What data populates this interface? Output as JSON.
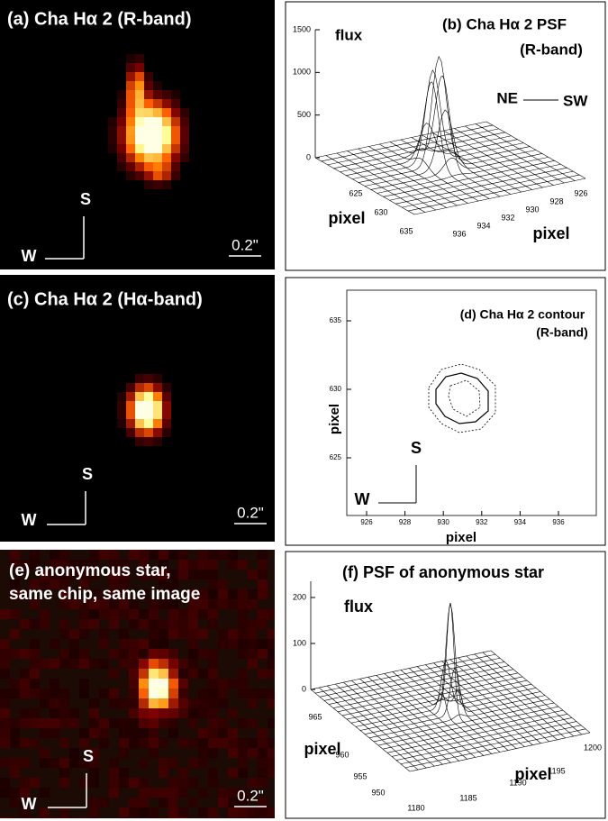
{
  "panels": [
    {
      "title": "(a) Cha Hα 2  (R-band)",
      "compass": {
        "up": "S",
        "left": "W"
      },
      "scale": "0.2\""
    },
    {
      "title": "(b) Cha Hα 2 PSF",
      "subtitle": "(R-band)",
      "z_label": "flux",
      "direction": {
        "left": "NE",
        "right": "SW"
      },
      "z_ticks": [
        0,
        500,
        1000,
        1500
      ],
      "y_ticks": [
        625,
        630,
        635
      ],
      "x_ticks": [
        926,
        928,
        930,
        932,
        934,
        936
      ],
      "y_label": "pixel",
      "x_label": "pixel"
    },
    {
      "title": "(c) Cha Hα 2 (Hα-band)",
      "compass": {
        "up": "S",
        "left": "W"
      },
      "scale": "0.2\""
    },
    {
      "title": "(d) Cha Hα 2 contour",
      "subtitle": "(R-band)",
      "y_ticks": [
        625,
        630,
        635
      ],
      "x_ticks": [
        926,
        928,
        930,
        932,
        934,
        936
      ],
      "y_label": "pixel",
      "x_label": "pixel",
      "compass": {
        "up": "S",
        "left": "W"
      }
    },
    {
      "title_lines": [
        "(e) anonymous star,",
        "same chip, same image"
      ],
      "compass": {
        "up": "S",
        "left": "W"
      },
      "scale": "0.2\""
    },
    {
      "title": "(f) PSF of  anonymous star",
      "z_label": "flux",
      "z_ticks": [
        0,
        100,
        200
      ],
      "y_ticks": [
        950,
        955,
        960,
        965
      ],
      "x_ticks": [
        1180,
        1185,
        1190,
        1195,
        1200
      ],
      "y_label": "pixel",
      "x_label": "pixel"
    }
  ]
}
